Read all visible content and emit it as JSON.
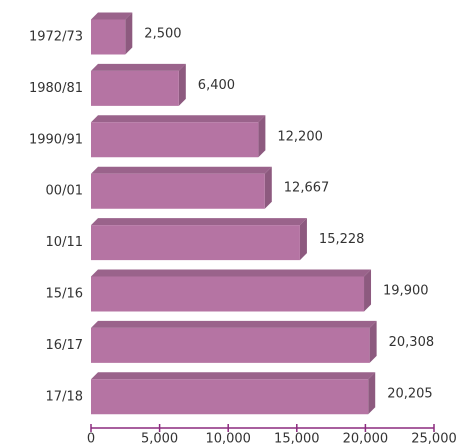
{
  "chart_data": {
    "type": "bar",
    "orientation": "horizontal",
    "categories": [
      "1972/73",
      "1980/81",
      "1990/91",
      "00/01",
      "10/11",
      "15/16",
      "16/17",
      "17/18"
    ],
    "values": [
      2500,
      6400,
      12200,
      12667,
      15228,
      19900,
      20308,
      20205
    ],
    "value_labels": [
      "2,500",
      "6,400",
      "12,200",
      "12,667",
      "15,228",
      "19,900",
      "20,308",
      "20,205"
    ],
    "color": "#b574a3",
    "xlim": [
      0,
      25000
    ],
    "xticks": [
      0,
      {
        "value": 5000,
        "label": "5,000"
      },
      {
        "value": 10000,
        "label": "10,000"
      },
      {
        "value": 15000,
        "label": "15,000"
      },
      {
        "value": 20000,
        "label": "20,000"
      },
      {
        "value": 25000,
        "label": "25,000"
      }
    ]
  }
}
